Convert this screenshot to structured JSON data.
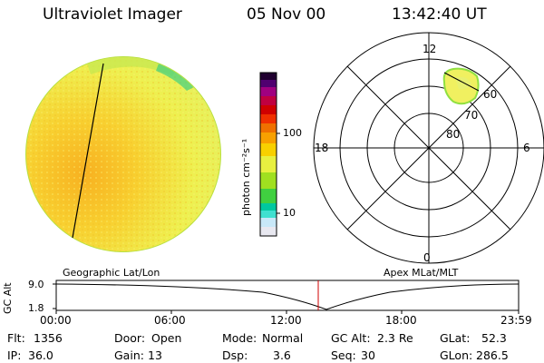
{
  "header": {
    "instrument": "Ultraviolet Imager",
    "date": "05 Nov 00",
    "time": "13:42:40 UT"
  },
  "colorbar": {
    "label": "photon cm⁻²s⁻¹",
    "ticks": [
      "100",
      "10"
    ],
    "colors": [
      "#e8e8f0",
      "#c8e8f8",
      "#40e0d0",
      "#00c8a0",
      "#40d040",
      "#a0e020",
      "#e8f040",
      "#f8d000",
      "#f8a000",
      "#f07000",
      "#f03000",
      "#d00000",
      "#c00040",
      "#a00080",
      "#500070",
      "#200030"
    ]
  },
  "polar_plot": {
    "labels": {
      "top": "12",
      "left": "18",
      "right": "6",
      "bottom": "0"
    },
    "rings": [
      "80",
      "70",
      "60"
    ]
  },
  "timeline": {
    "left_title": "Geographic Lat/Lon",
    "right_title": "Apex MLat/MLT",
    "axis_label": "GC Alt",
    "y_ticks": [
      "9.0",
      "1.8"
    ],
    "x_ticks": [
      "00:00",
      "06:00",
      "12:00",
      "18:00",
      "23:59"
    ]
  },
  "stats": {
    "row1": {
      "flt_label": "Flt:",
      "flt_value": "1356",
      "door_label": "Door:",
      "door_value": "Open",
      "mode_label": "Mode:",
      "mode_value": "Normal",
      "gcalt_label": "GC Alt:",
      "gcalt_value": "2.3 Re",
      "glat_label": "GLat:",
      "glat_value": "52.3"
    },
    "row2": {
      "ip_label": "IP:",
      "ip_value": "36.0",
      "gain_label": "Gain:",
      "gain_value": "13",
      "dsp_label": "Dsp:",
      "dsp_value": "3.6",
      "seq_label": "Seq:",
      "seq_value": "30",
      "glon_label": "GLon:",
      "glon_value": "286.5"
    }
  }
}
